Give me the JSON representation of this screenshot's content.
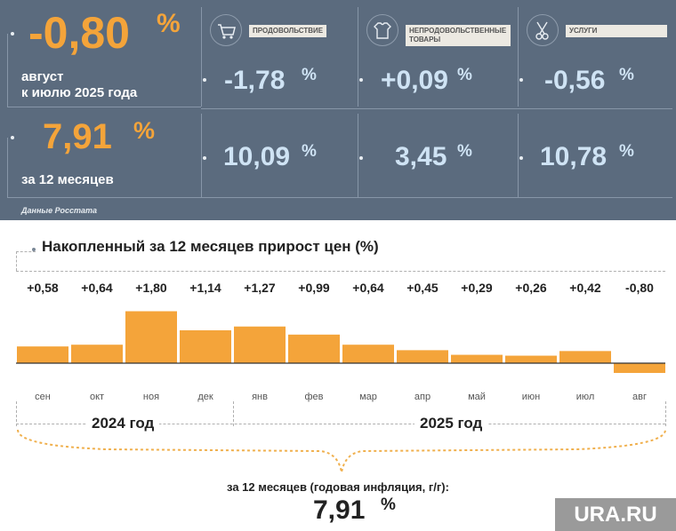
{
  "panel": {
    "monthly_value": "-0,80",
    "monthly_pct": "%",
    "monthly_caption_1": "август",
    "monthly_caption_2": "к июлю 2025 года",
    "annual_value": "7,91",
    "annual_pct": "%",
    "annual_caption": "за 12 месяцев",
    "source": "Данные Росстата",
    "categories": [
      {
        "label": "ПРОДОВОЛЬСТВИЕ",
        "icon": "shopping-cart-icon",
        "monthly": "-1,78",
        "annual": "10,09",
        "pct": "%"
      },
      {
        "label": "НЕПРОДОВОЛЬСТВЕННЫЕ ТОВАРЫ",
        "icon": "clothing-icon",
        "monthly": "+0,09",
        "annual": "3,45",
        "pct": "%"
      },
      {
        "label": "УСЛУГИ",
        "icon": "scissors-comb-icon",
        "monthly": "-0,56",
        "annual": "10,78",
        "pct": "%"
      }
    ],
    "colors": {
      "panel_bg": "#5b6b7e",
      "accent": "#f4a43a",
      "value_blue": "#cfe3f4"
    }
  },
  "chart_data": {
    "type": "bar",
    "title": "Накопленный за 12 месяцев прирост цен (%)",
    "categories": [
      "сен",
      "окт",
      "ноя",
      "дек",
      "янв",
      "фев",
      "мар",
      "апр",
      "май",
      "июн",
      "июл",
      "авг"
    ],
    "values": [
      0.58,
      0.64,
      1.8,
      1.14,
      1.27,
      0.99,
      0.64,
      0.45,
      0.29,
      0.26,
      0.42,
      -0.8
    ],
    "value_labels": [
      "+0,58",
      "+0,64",
      "+1,80",
      "+1,14",
      "+1,27",
      "+0,99",
      "+0,64",
      "+0,45",
      "+0,29",
      "+0,26",
      "+0,42",
      "-0,80"
    ],
    "years": [
      "2024 год",
      "2025 год"
    ],
    "bar_color": "#f4a43a",
    "grid": false
  },
  "footer": {
    "caption": "за 12 месяцев (годовая инфляция, г/г):",
    "value": "7,91",
    "pct": "%"
  },
  "watermark": "URA.RU"
}
